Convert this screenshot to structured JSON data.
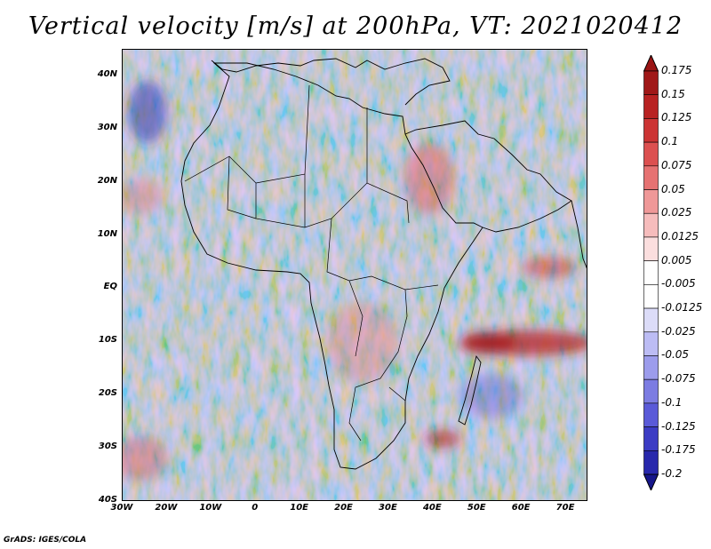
{
  "title": "Vertical velocity [m/s] at 200hPa, VT: 2021020412",
  "credit": "GrADS: IGES/COLA",
  "map": {
    "variable": "Vertical velocity",
    "units": "m/s",
    "level": "200hPa",
    "valid_time": "2021020412",
    "lon_range": [
      -30,
      75
    ],
    "lat_range": [
      -40,
      45
    ],
    "lat_ticks": [
      {
        "lat": 40,
        "label": "40N"
      },
      {
        "lat": 30,
        "label": "30N"
      },
      {
        "lat": 20,
        "label": "20N"
      },
      {
        "lat": 10,
        "label": "10N"
      },
      {
        "lat": 0,
        "label": "EQ"
      },
      {
        "lat": -10,
        "label": "10S"
      },
      {
        "lat": -20,
        "label": "20S"
      },
      {
        "lat": -30,
        "label": "30S"
      },
      {
        "lat": -40,
        "label": "40S"
      }
    ],
    "lon_ticks": [
      {
        "lon": -30,
        "label": "30W"
      },
      {
        "lon": -20,
        "label": "20W"
      },
      {
        "lon": -10,
        "label": "10W"
      },
      {
        "lon": 0,
        "label": "0"
      },
      {
        "lon": 10,
        "label": "10E"
      },
      {
        "lon": 20,
        "label": "20E"
      },
      {
        "lon": 30,
        "label": "30E"
      },
      {
        "lon": 40,
        "label": "40E"
      },
      {
        "lon": 50,
        "label": "50E"
      },
      {
        "lon": 60,
        "label": "60E"
      },
      {
        "lon": 70,
        "label": "70E"
      }
    ]
  },
  "colorbar": {
    "levels": [
      {
        "label": "0.175",
        "color": "#a01818"
      },
      {
        "label": "0.15",
        "color": "#b82222"
      },
      {
        "label": "0.125",
        "color": "#cc3434"
      },
      {
        "label": "0.1",
        "color": "#dc5050"
      },
      {
        "label": "0.075",
        "color": "#e67272"
      },
      {
        "label": "0.05",
        "color": "#ef9898"
      },
      {
        "label": "0.025",
        "color": "#f6bcbc"
      },
      {
        "label": "0.0125",
        "color": "#fbdede"
      },
      {
        "label": "0.005",
        "color": "#ffffff"
      },
      {
        "label": "-0.005",
        "color": "#ffffff"
      },
      {
        "label": "-0.0125",
        "color": "#dcdcf8"
      },
      {
        "label": "-0.025",
        "color": "#bcbcf4"
      },
      {
        "label": "-0.05",
        "color": "#9c9cec"
      },
      {
        "label": "-0.075",
        "color": "#7c7ce2"
      },
      {
        "label": "-0.1",
        "color": "#5a5ad8"
      },
      {
        "label": "-0.125",
        "color": "#3c3cc4"
      },
      {
        "label": "-0.175",
        "color": "#2828ac"
      },
      {
        "label": "-0.2",
        "color": "#1a1a8c"
      }
    ],
    "top_color": "#9a1414",
    "bottom_color": "#16168a"
  }
}
